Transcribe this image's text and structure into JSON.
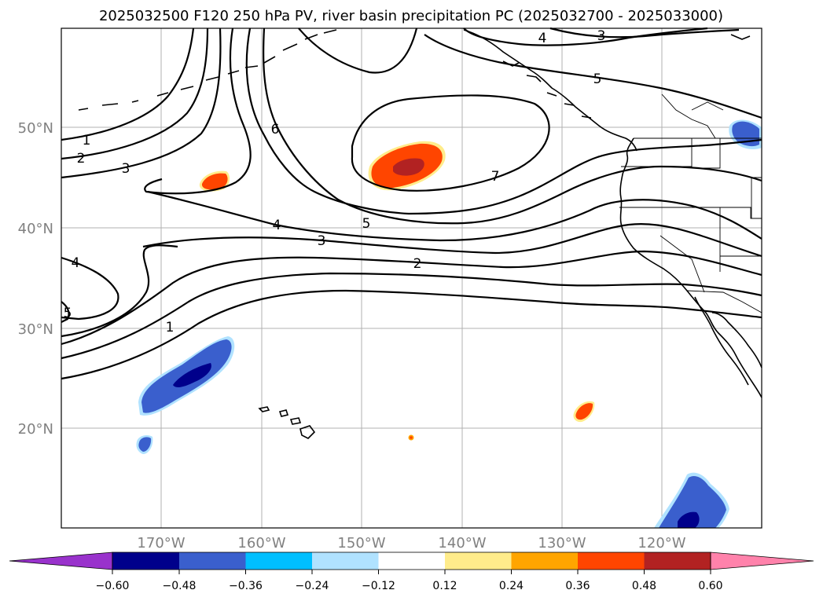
{
  "title": "2025032500 F120 250 hPa PV, river basin precipitation PC (2025032700 - 2025033000)",
  "lat_labels": [
    "50°N",
    "40°N",
    "30°N",
    "20°N"
  ],
  "lon_labels": [
    "170°W",
    "160°W",
    "150°W",
    "140°W",
    "130°W",
    "120°W"
  ],
  "contour_labels": [
    "1",
    "2",
    "3",
    "6",
    "4",
    "5",
    "4",
    "3",
    "2",
    "1",
    "7",
    "4",
    "3",
    "5",
    "5"
  ],
  "colorbar": {
    "colors": [
      "#9932CC",
      "#00008B",
      "#3A5FCD",
      "#00BFFF",
      "#B0E2FF",
      "#FFFFFF",
      "#FFEC8B",
      "#FFA500",
      "#FF4500",
      "#B22222",
      "#FF82AB"
    ],
    "tick_labels": [
      "−0.60",
      "−0.48",
      "−0.36",
      "−0.24",
      "−0.12",
      "0.12",
      "0.24",
      "0.36",
      "0.48",
      "0.60"
    ]
  },
  "precip_colors": {
    "neg_light": "#B0E2FF",
    "neg_mid": "#3A5FCD",
    "neg_dark": "#00008B",
    "pos_light": "#FFEC8B",
    "pos_mid": "#FF4500",
    "pos_dark": "#B22222",
    "pos_orange": "#FFA500"
  }
}
